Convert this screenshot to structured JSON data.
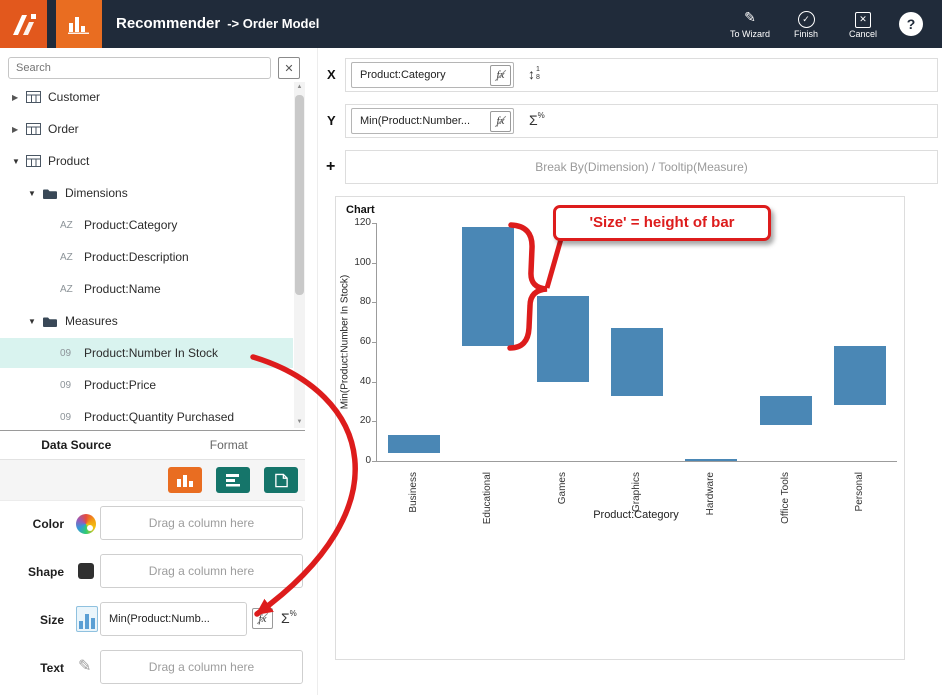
{
  "colors": {
    "topbar_bg": "#202b3a",
    "accent_orange": "#e96d21",
    "teal": "#15756a",
    "selected_bg": "#d9f3ef",
    "bar_blue": "#4a87b5",
    "annotation_red": "#dd1c1c"
  },
  "icons": {
    "caret_collapsed": "▶",
    "caret_expanded": "▼",
    "pencil": "✎",
    "check": "✓",
    "close": "✕",
    "help": "?",
    "clear": "✕",
    "plus": "+",
    "sigma": "Σ",
    "percent": "%",
    "fx": "fx",
    "sort_top": "1",
    "sort_bottom": "8"
  },
  "topbar": {
    "title": "Recommender",
    "subtitle": "-> Order Model",
    "actions": {
      "wizard": "To Wizard",
      "finish": "Finish",
      "cancel": "Cancel"
    }
  },
  "sidebar": {
    "search_placeholder": "Search",
    "tree": [
      {
        "label": "Customer"
      },
      {
        "label": "Order"
      },
      {
        "label": "Product"
      },
      {
        "label": "Dimensions"
      },
      {
        "prefix": "AZ",
        "label": "Product:Category"
      },
      {
        "prefix": "AZ",
        "label": "Product:Description"
      },
      {
        "prefix": "AZ",
        "label": "Product:Name"
      },
      {
        "label": "Measures"
      },
      {
        "prefix": "09",
        "label": "Product:Number In Stock"
      },
      {
        "prefix": "09",
        "label": "Product:Price"
      },
      {
        "prefix": "09",
        "label": "Product:Quantity Purchased"
      }
    ],
    "tabs": [
      {
        "label": "Data Source"
      },
      {
        "label": "Format"
      }
    ],
    "fields": {
      "color": "Color",
      "shape": "Shape",
      "size": "Size",
      "text": "Text",
      "drag_placeholder": "Drag a column here",
      "size_value": "Min(Product:Numb..."
    }
  },
  "builder": {
    "x_label": "X",
    "x_value": "Product:Category",
    "y_label": "Y",
    "y_value": "Min(Product:Number...",
    "break_placeholder": "Break By(Dimension) / Tooltip(Measure)"
  },
  "chart_data": {
    "type": "bar",
    "title": "Chart",
    "categories": [
      "Business",
      "Educational",
      "Games",
      "Graphics",
      "Hardware",
      "Office Tools",
      "Personal"
    ],
    "bars": [
      {
        "category": "Business",
        "low": 4,
        "high": 13
      },
      {
        "category": "Educational",
        "low": 58,
        "high": 118
      },
      {
        "category": "Games",
        "low": 40,
        "high": 83
      },
      {
        "category": "Graphics",
        "low": 33,
        "high": 67
      },
      {
        "category": "Hardware",
        "low": 0,
        "high": 1
      },
      {
        "category": "Office Tools",
        "low": 18,
        "high": 33
      },
      {
        "category": "Personal",
        "low": 28,
        "high": 58
      }
    ],
    "xlabel": "Product:Category",
    "ylabel": "Min(Product:Number In Stock)",
    "ylim": [
      0,
      120
    ],
    "ytick_step": 20,
    "bar_color": "#4a87b5",
    "legend": "none",
    "grid": "off"
  },
  "annotation": {
    "callout": "'Size' = height of bar",
    "color": "#dd1c1c"
  }
}
